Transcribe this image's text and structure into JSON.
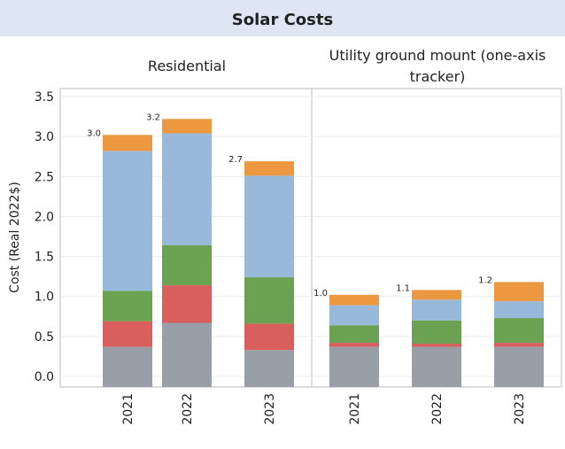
{
  "title": "Solar Costs",
  "ylabel": "Cost (Real 2022$)",
  "y_ticks": [
    "0.0",
    "0.5",
    "1.0",
    "1.5",
    "2.0",
    "2.5",
    "3.0",
    "3.5"
  ],
  "colors": {
    "gray": "#9a9ea6",
    "red": "#d95f5f",
    "green": "#6aa252",
    "blue": "#98b9d9",
    "orange": "#ec9840",
    "title_band": "#dfe6f3",
    "divider": "#bdbdbd",
    "grid": "#ececec"
  },
  "chart_data": {
    "type": "bar",
    "stacked": true,
    "title": "Solar Costs",
    "ylabel": "Cost (Real 2022$)",
    "ylim": [
      0,
      3.5
    ],
    "grid": "horizontal",
    "legend": "none",
    "panels": [
      {
        "name": "Residential",
        "categories": [
          "2021",
          "2022",
          "2023"
        ],
        "totals_labels": [
          "3.0",
          "3.2",
          "2.7"
        ],
        "segments": [
          {
            "color_key": "gray",
            "values": [
              0.37,
              0.67,
              0.33
            ]
          },
          {
            "color_key": "red",
            "values": [
              0.32,
              0.47,
              0.33
            ]
          },
          {
            "color_key": "green",
            "values": [
              0.38,
              0.5,
              0.58
            ]
          },
          {
            "color_key": "blue",
            "values": [
              1.75,
              1.4,
              1.27
            ]
          },
          {
            "color_key": "orange",
            "values": [
              0.2,
              0.18,
              0.18
            ]
          }
        ]
      },
      {
        "name": "Utility ground mount (one-axis tracker)",
        "name_lines": [
          "Utility ground mount (one-axis",
          "tracker)"
        ],
        "categories": [
          "2021",
          "2022",
          "2023"
        ],
        "totals_labels": [
          "1.0",
          "1.1",
          "1.2"
        ],
        "segments": [
          {
            "color_key": "gray",
            "values": [
              0.37,
              0.37,
              0.37
            ]
          },
          {
            "color_key": "red",
            "values": [
              0.05,
              0.04,
              0.05
            ]
          },
          {
            "color_key": "green",
            "values": [
              0.22,
              0.29,
              0.31
            ]
          },
          {
            "color_key": "blue",
            "values": [
              0.25,
              0.26,
              0.21
            ]
          },
          {
            "color_key": "orange",
            "values": [
              0.13,
              0.12,
              0.24
            ]
          }
        ]
      }
    ]
  }
}
